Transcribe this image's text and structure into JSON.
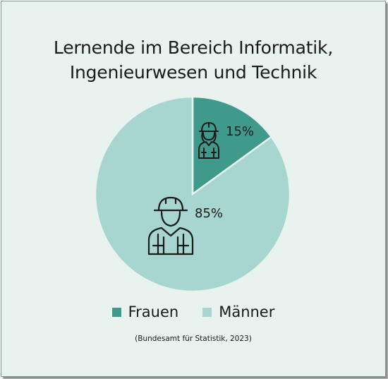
{
  "chart_data": {
    "type": "pie",
    "title_lines": [
      "Lernende im Bereich Informatik,",
      "Ingenieurwesen und Technik"
    ],
    "slices": [
      {
        "label": "Frauen",
        "value": 15,
        "value_label": "15%",
        "color": "#3f9a8c",
        "icon": "female-worker-icon"
      },
      {
        "label": "Männer",
        "value": 85,
        "value_label": "85%",
        "color": "#a7d6d0",
        "icon": "male-worker-icon"
      }
    ],
    "legend_position": "bottom",
    "source": "(Bundesamt für Statistik, 2023)"
  },
  "colors": {
    "background": "#e8f3f0",
    "slice_border": "#e8f3f0",
    "icon_stroke": "#1a1a1a"
  }
}
